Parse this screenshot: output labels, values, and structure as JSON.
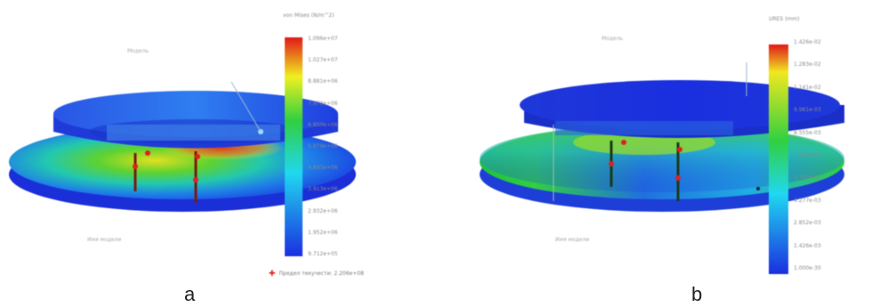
{
  "panels": {
    "a": {
      "letter": "a",
      "colorbar_title": "von Mises (N/m^2)",
      "ticks": [
        "1.096e+07",
        "1.027e+07",
        "8.881e+06",
        "7.973e+06",
        "6.850e+06",
        "5.879e+06",
        "4.893e+06",
        "3.913e+06",
        "2.932e+06",
        "1.952e+06",
        "9.712e+05"
      ],
      "legend": "Предел текучести: 2.206e+08",
      "model_label": "Модель",
      "note_label": "Имя модели"
    },
    "b": {
      "letter": "b",
      "colorbar_title": "URES (mm)",
      "ticks": [
        "1.426e-02",
        "1.283e-02",
        "1.141e-02",
        "9.981e-03",
        "8.555e-03",
        "7.129e-03",
        "5.703e-03",
        "4.277e-03",
        "2.852e-03",
        "1.426e-03",
        "1.000e-30"
      ],
      "model_label": "Модель",
      "note_label": "Имя модели"
    }
  },
  "colors": {
    "blue": "#1a2fe0",
    "cyan": "#20d8f0",
    "green": "#20c030",
    "yellow": "#f0f020",
    "red": "#e02020"
  }
}
